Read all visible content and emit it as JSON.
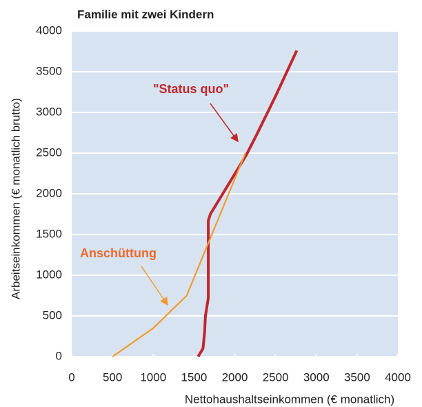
{
  "chart_data": {
    "type": "line",
    "title": "Familie mit zwei Kindern",
    "x_label": "Nettohaushaltseinkommen (€  monatlich)",
    "y_label": "Arbeitseinkommen (€ monatlich brutto)",
    "xlim": [
      0,
      4000
    ],
    "xticks": [
      0,
      500,
      1000,
      1500,
      2000,
      2500,
      3000,
      3500,
      4000
    ],
    "ylim": [
      0,
      4000
    ],
    "yticks": [
      0,
      500,
      1000,
      1500,
      2000,
      2500,
      3000,
      3500,
      4000
    ],
    "grid": true,
    "series": [
      {
        "name": "\"Status quo\"",
        "color": "#c0272d",
        "x": [
          1550,
          1610,
          1630,
          1640,
          1675,
          1675,
          1700,
          2140,
          2270,
          2500,
          2760
        ],
        "values": [
          0,
          100,
          300,
          500,
          720,
          1670,
          1750,
          2475,
          2730,
          3200,
          3760
        ]
      },
      {
        "name": "Anschüttung",
        "color": "#f39a2e",
        "x": [
          500,
          1000,
          1410,
          2130
        ],
        "values": [
          0,
          350,
          750,
          2500
        ]
      }
    ]
  }
}
